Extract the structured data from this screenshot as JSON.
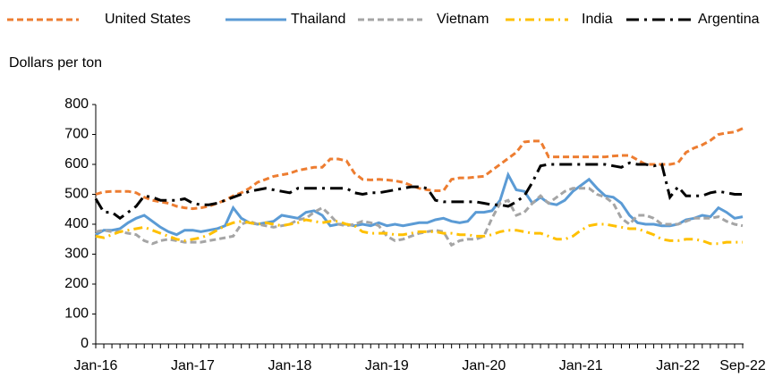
{
  "chart_data": {
    "type": "line",
    "y_label": "Dollars per ton",
    "categories": [
      "Jan-16",
      null,
      null,
      null,
      null,
      null,
      null,
      null,
      null,
      null,
      null,
      null,
      "Jan-17",
      null,
      null,
      null,
      null,
      null,
      null,
      null,
      null,
      null,
      null,
      null,
      "Jan-18",
      null,
      null,
      null,
      null,
      null,
      null,
      null,
      null,
      null,
      null,
      null,
      "Jan-19",
      null,
      null,
      null,
      null,
      null,
      null,
      null,
      null,
      null,
      null,
      null,
      "Jan-20",
      null,
      null,
      null,
      null,
      null,
      null,
      null,
      null,
      null,
      null,
      null,
      "Jan-21",
      null,
      null,
      null,
      null,
      null,
      null,
      null,
      null,
      null,
      null,
      null,
      "Jan-22",
      null,
      null,
      null,
      null,
      null,
      null,
      null,
      "Sep-22"
    ],
    "ylim": [
      0,
      800
    ],
    "yticks": [
      0,
      100,
      200,
      300,
      400,
      500,
      600,
      700,
      800
    ],
    "grid": false,
    "series": [
      {
        "name": "United States",
        "color": "#ed7d31",
        "line_style": "dashed",
        "values": [
          500,
          508,
          510,
          510,
          510,
          505,
          490,
          480,
          475,
          470,
          460,
          455,
          452,
          455,
          460,
          470,
          480,
          495,
          505,
          520,
          540,
          550,
          560,
          565,
          570,
          580,
          585,
          590,
          590,
          618,
          618,
          612,
          570,
          550,
          548,
          550,
          548,
          545,
          540,
          530,
          520,
          515,
          512,
          512,
          550,
          555,
          555,
          558,
          560,
          580,
          600,
          620,
          640,
          675,
          678,
          678,
          625,
          625,
          625,
          625,
          625,
          625,
          625,
          625,
          628,
          630,
          630,
          615,
          600,
          600,
          600,
          600,
          605,
          640,
          655,
          665,
          680,
          700,
          705,
          708,
          720
        ]
      },
      {
        "name": "Thailand",
        "color": "#5b9bd5",
        "line_style": "solid",
        "values": [
          365,
          380,
          380,
          385,
          405,
          420,
          430,
          410,
          390,
          375,
          365,
          380,
          380,
          375,
          380,
          385,
          395,
          455,
          420,
          405,
          400,
          405,
          410,
          430,
          425,
          420,
          440,
          445,
          430,
          395,
          400,
          400,
          395,
          400,
          395,
          405,
          395,
          400,
          395,
          400,
          405,
          405,
          415,
          420,
          410,
          405,
          410,
          440,
          440,
          445,
          480,
          565,
          515,
          510,
          470,
          490,
          470,
          465,
          480,
          510,
          530,
          550,
          520,
          495,
          490,
          470,
          430,
          405,
          400,
          400,
          395,
          395,
          400,
          415,
          420,
          430,
          425,
          455,
          440,
          420,
          425
        ]
      },
      {
        "name": "Vietnam",
        "color": "#a5a5a5",
        "line_style": "dashed",
        "values": [
          375,
          380,
          375,
          375,
          370,
          365,
          345,
          335,
          345,
          350,
          345,
          340,
          340,
          340,
          345,
          350,
          355,
          360,
          400,
          410,
          400,
          395,
          390,
          395,
          400,
          415,
          420,
          440,
          455,
          430,
          400,
          395,
          400,
          410,
          405,
          395,
          360,
          345,
          350,
          360,
          370,
          375,
          380,
          375,
          330,
          345,
          350,
          350,
          360,
          420,
          470,
          480,
          430,
          440,
          470,
          495,
          470,
          490,
          510,
          520,
          520,
          520,
          500,
          490,
          470,
          420,
          400,
          430,
          430,
          420,
          400,
          400,
          400,
          410,
          420,
          420,
          420,
          425,
          410,
          400,
          395
        ]
      },
      {
        "name": "India",
        "color": "#ffc000",
        "line_style": "dash-dot",
        "values": [
          360,
          355,
          365,
          375,
          380,
          385,
          390,
          380,
          370,
          360,
          350,
          345,
          350,
          355,
          365,
          380,
          395,
          405,
          410,
          405,
          400,
          405,
          400,
          395,
          400,
          405,
          415,
          410,
          405,
          410,
          410,
          400,
          395,
          375,
          370,
          370,
          370,
          365,
          365,
          370,
          375,
          375,
          375,
          370,
          370,
          365,
          365,
          360,
          360,
          365,
          375,
          380,
          380,
          375,
          370,
          370,
          360,
          350,
          350,
          360,
          380,
          395,
          400,
          400,
          395,
          390,
          385,
          385,
          375,
          365,
          350,
          345,
          345,
          350,
          350,
          345,
          335,
          335,
          340,
          340,
          340
        ]
      },
      {
        "name": "Argentina",
        "color": "#000000",
        "line_style": "long-dash-dot",
        "values": [
          485,
          440,
          440,
          420,
          440,
          460,
          495,
          490,
          480,
          480,
          480,
          485,
          470,
          465,
          465,
          470,
          480,
          490,
          500,
          510,
          515,
          520,
          515,
          510,
          505,
          520,
          520,
          520,
          520,
          520,
          520,
          520,
          505,
          500,
          505,
          505,
          510,
          515,
          520,
          525,
          525,
          520,
          480,
          475,
          475,
          475,
          475,
          475,
          470,
          465,
          465,
          460,
          475,
          495,
          540,
          595,
          600,
          600,
          600,
          600,
          600,
          600,
          600,
          600,
          595,
          590,
          605,
          600,
          600,
          595,
          600,
          490,
          525,
          495,
          495,
          495,
          505,
          510,
          505,
          500,
          500
        ]
      }
    ]
  }
}
